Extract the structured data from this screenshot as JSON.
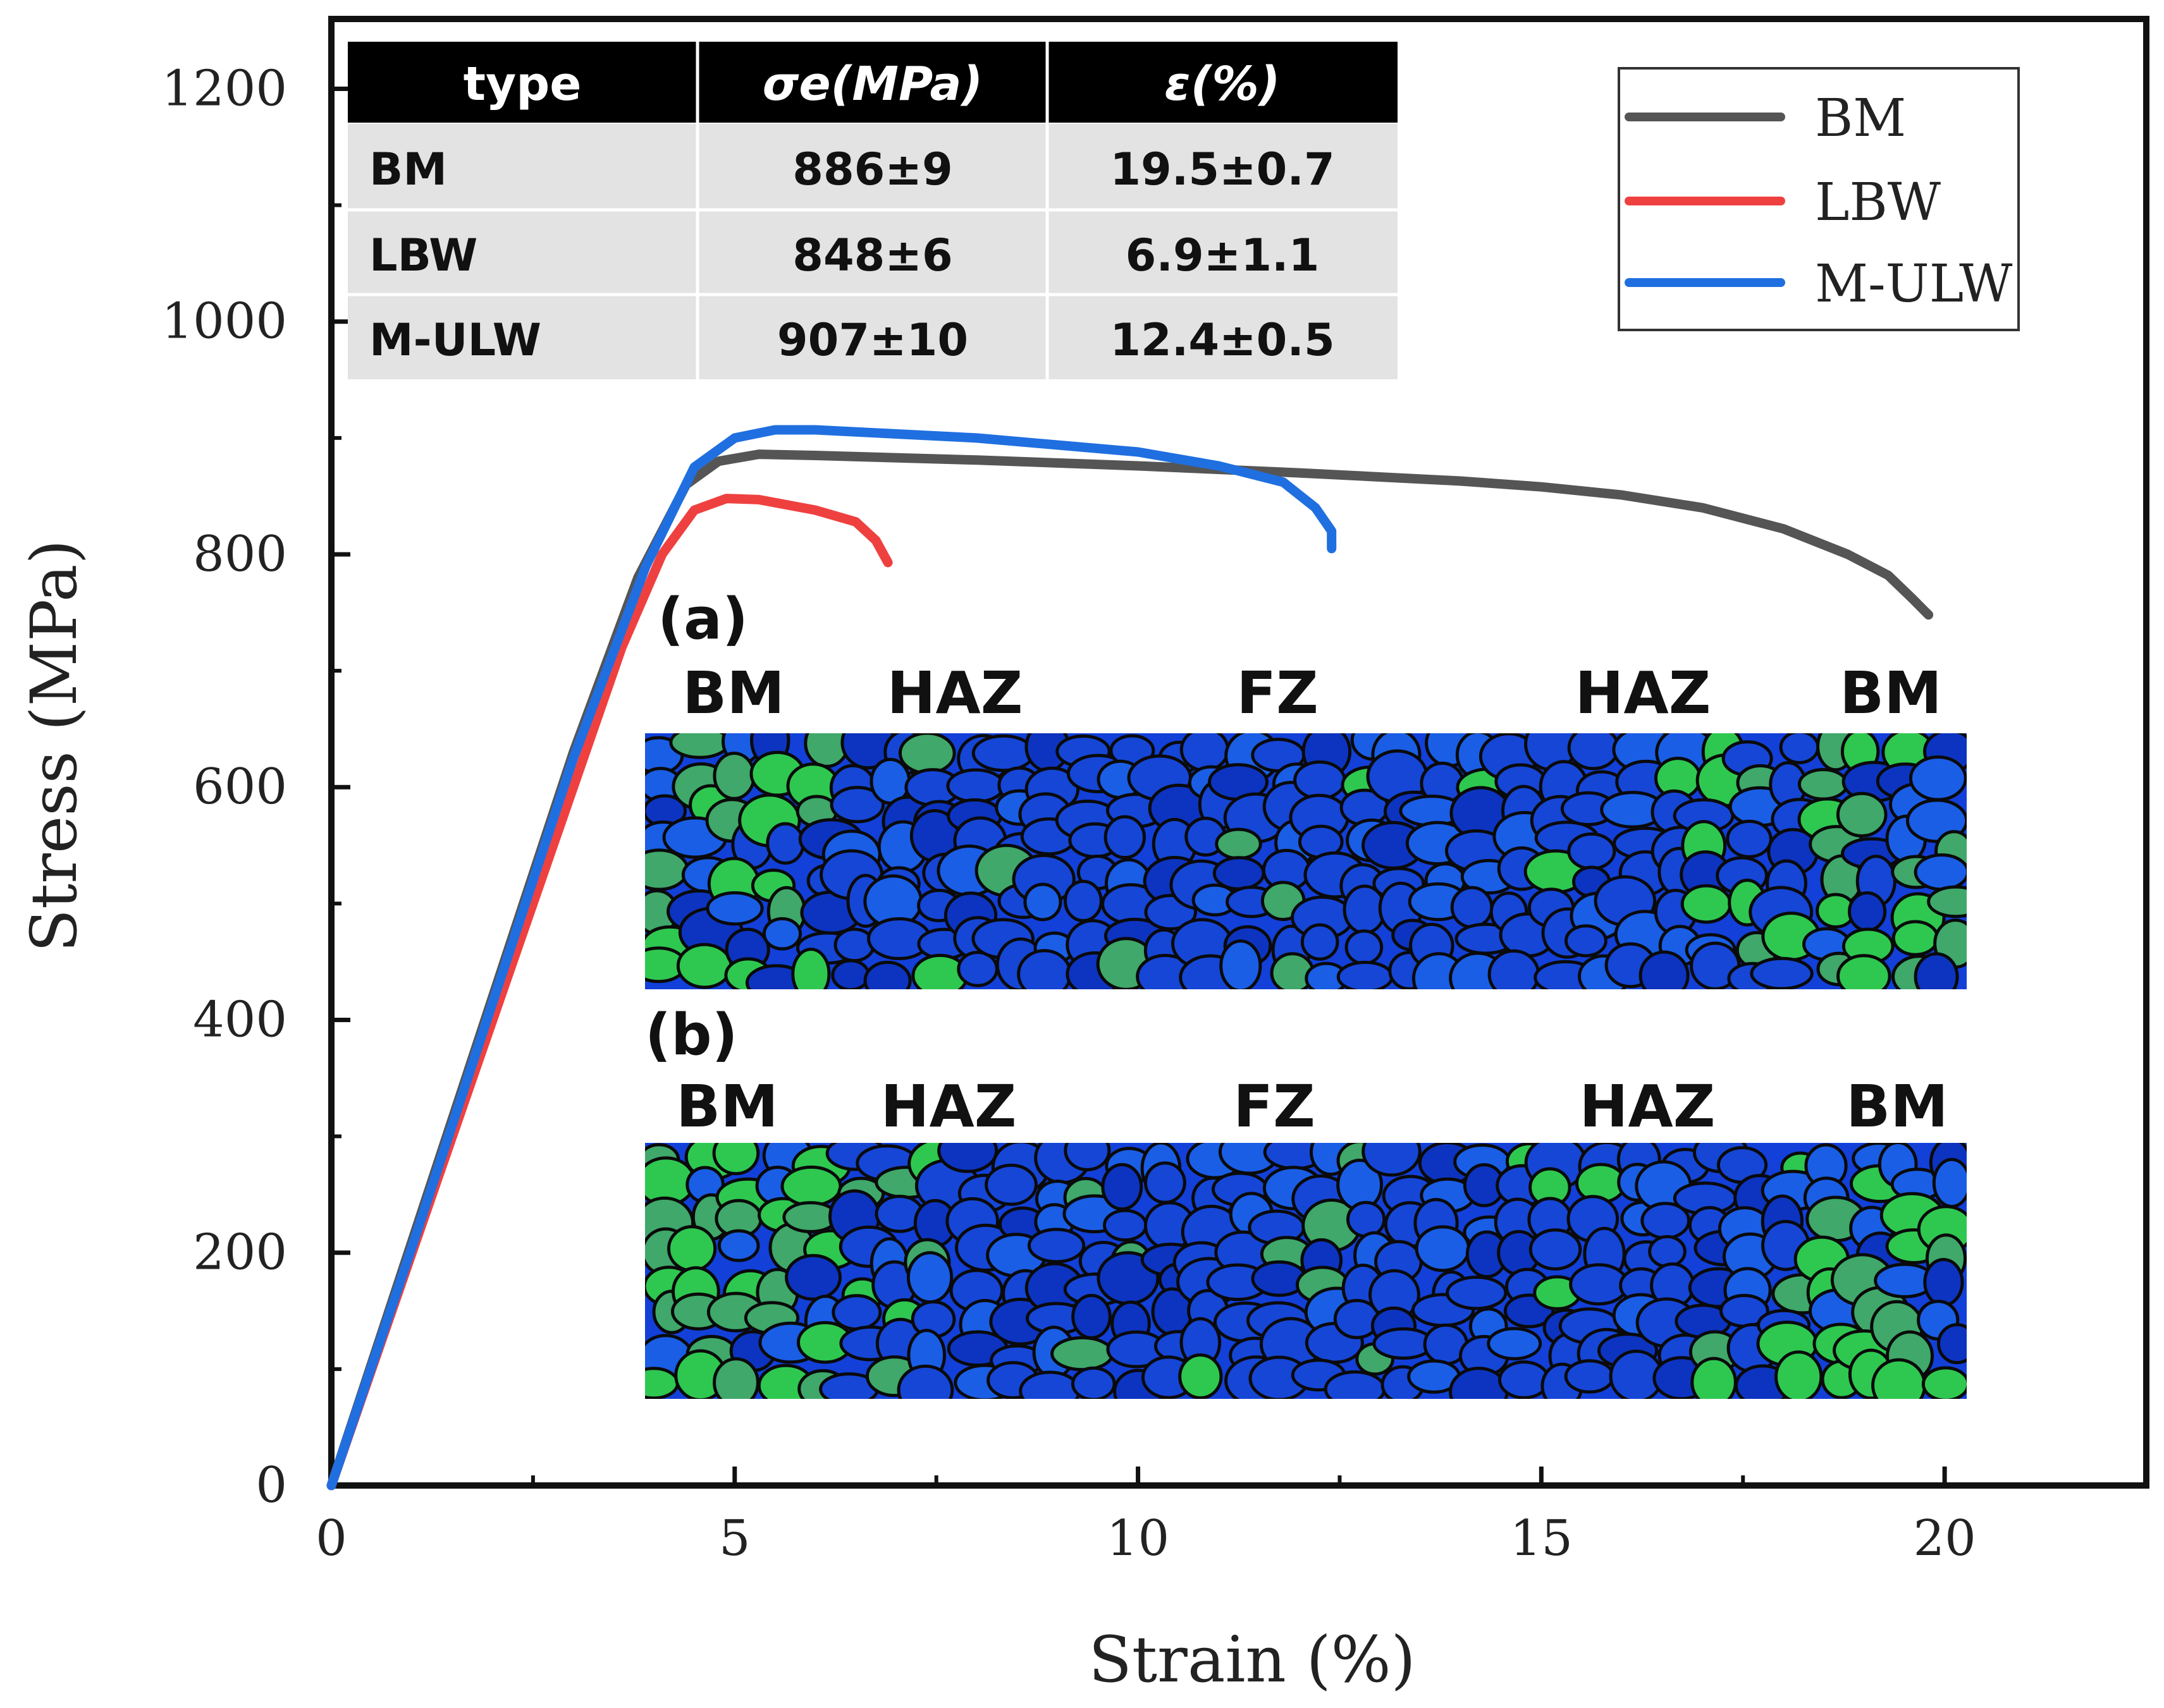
{
  "chart_data": {
    "type": "line",
    "xlabel": "Strain (%)",
    "ylabel": "Stress (MPa)",
    "xlim": [
      0,
      22.5
    ],
    "ylim": [
      0,
      1260
    ],
    "x_ticks": [
      0,
      5,
      10,
      15,
      20
    ],
    "x_tick_labels": [
      "0",
      "5",
      "10",
      "15",
      "20"
    ],
    "y_ticks": [
      0,
      200,
      400,
      600,
      800,
      1000,
      1200
    ],
    "y_tick_labels": [
      "0",
      "200",
      "400",
      "600",
      "800",
      "1000",
      "1200"
    ],
    "legend_position": "top-right",
    "series": [
      {
        "name": "BM",
        "color": "#555555",
        "x": [
          0,
          1,
          2,
          3,
          3.8,
          4.4,
          4.8,
          5.3,
          6,
          8,
          10,
          12,
          14,
          15,
          16,
          17,
          18,
          18.8,
          19.3,
          19.6,
          19.8
        ],
        "y": [
          0,
          210,
          420,
          630,
          780,
          860,
          880,
          886,
          885,
          881,
          876,
          870,
          863,
          858,
          851,
          840,
          822,
          800,
          782,
          762,
          748
        ]
      },
      {
        "name": "LBW",
        "color": "#ef4040",
        "x": [
          0,
          1,
          2,
          3,
          3.6,
          4.1,
          4.5,
          4.9,
          5.3,
          6,
          6.5,
          6.75,
          6.9
        ],
        "y": [
          0,
          200,
          400,
          600,
          720,
          800,
          838,
          848,
          847,
          838,
          828,
          812,
          793
        ]
      },
      {
        "name": "M-ULW",
        "color": "#1f6fe0",
        "x": [
          0,
          1,
          2,
          3,
          3.9,
          4.5,
          5,
          5.5,
          6,
          8,
          10,
          11,
          11.8,
          12.2,
          12.4,
          12.4
        ],
        "y": [
          0,
          205,
          415,
          625,
          790,
          875,
          900,
          907,
          907,
          900,
          888,
          876,
          862,
          840,
          820,
          805
        ]
      }
    ]
  },
  "table": {
    "headers": [
      "type",
      "σe(MPa)",
      "ε(%)"
    ],
    "rows": [
      [
        "BM",
        "886±9",
        "19.5±0.7"
      ],
      [
        "LBW",
        "848±6",
        "6.9±1.1"
      ],
      [
        "M-ULW",
        "907±10",
        "12.4±0.5"
      ]
    ]
  },
  "insets": [
    {
      "label": "(a)",
      "zones": [
        "BM",
        "HAZ",
        "FZ",
        "HAZ",
        "BM"
      ]
    },
    {
      "label": "(b)",
      "zones": [
        "BM",
        "HAZ",
        "FZ",
        "HAZ",
        "BM"
      ]
    }
  ],
  "colors": {
    "table_header_bg": "#000000",
    "table_body_bg": "#e3e3e3",
    "ebsd_base": "#1240d8",
    "ebsd_green": "#2ec850",
    "ebsd_boundary": "#0a0a0a"
  }
}
